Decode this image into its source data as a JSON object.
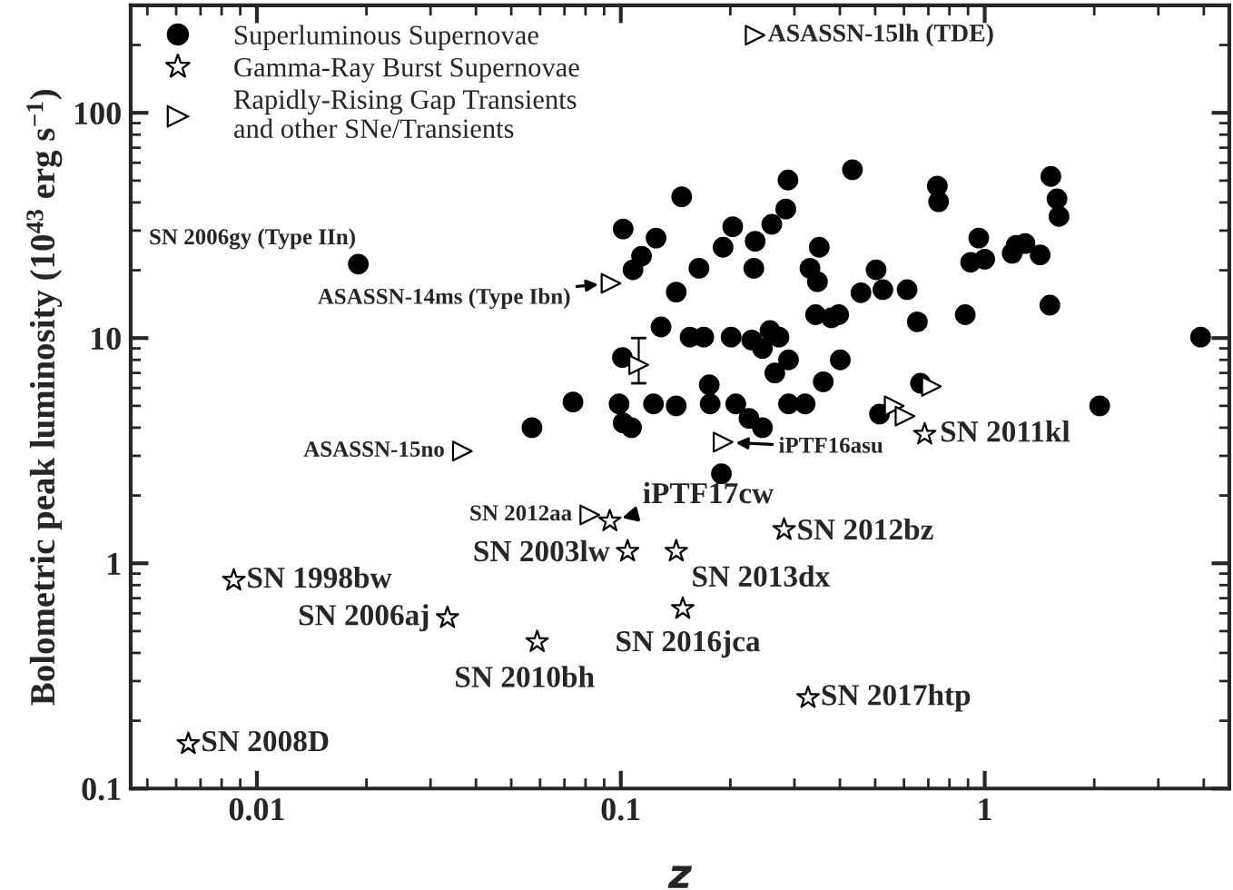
{
  "chart_data": {
    "type": "scatter",
    "xlabel": "z",
    "ylabel": "Bolometric peak luminosity (10$^{43}$ erg s$^{−1}$)",
    "log": "xy",
    "xlim": [
      0.0045,
      4.7
    ],
    "ylim": [
      0.1,
      300
    ],
    "xticks": [
      0.01,
      0.1,
      1
    ],
    "yticks": [
      0.1,
      1,
      10,
      100
    ],
    "grid": false,
    "legend": "top left",
    "series": [
      {
        "name": "Superluminous Supernovae",
        "color": "#000000",
        "marker": "circle",
        "x": [
          0.1015,
          0.108,
          0.114,
          0.125,
          0.147,
          0.142,
          0.129,
          0.155,
          0.169,
          0.164,
          0.191,
          0.203,
          0.201,
          0.232,
          0.234,
          0.26,
          0.284,
          0.288,
          0.229,
          0.245,
          0.257,
          0.272,
          0.265,
          0.289,
          0.175,
          0.36,
          0.401,
          0.331,
          0.347,
          0.351,
          0.343,
          0.379,
          0.397,
          0.433,
          0.457,
          0.503,
          0.525,
          0.612,
          0.653,
          0.741,
          0.747,
          0.884,
          0.915,
          0.963,
          1.0,
          1.19,
          1.22,
          1.29,
          1.42,
          1.51,
          1.52,
          1.58,
          1.6,
          3.92,
          2.07,
          0.666,
          0.514,
          0.0989,
          0.1015,
          0.107,
          0.123,
          0.142,
          0.176,
          0.207,
          0.225,
          0.245,
          0.289,
          0.321,
          0.101,
          0.019,
          0.057,
          0.0739,
          0.189
        ],
        "values": [
          30.5,
          20.1,
          23.1,
          27.8,
          42.4,
          16.0,
          11.2,
          10.1,
          10.1,
          20.4,
          25.3,
          31.2,
          10.1,
          20.4,
          26.9,
          32.0,
          37.4,
          50.3,
          9.8,
          9.0,
          10.8,
          10.1,
          7.0,
          8.0,
          6.2,
          6.4,
          8.0,
          20.4,
          17.8,
          25.3,
          12.7,
          12.3,
          12.7,
          55.9,
          15.9,
          20.1,
          16.4,
          16.4,
          11.8,
          47.3,
          40.3,
          12.7,
          21.7,
          27.8,
          22.4,
          23.8,
          25.8,
          26.3,
          23.4,
          14.0,
          52.2,
          41.5,
          34.7,
          10.1,
          5.0,
          6.3,
          4.6,
          5.1,
          4.2,
          4.0,
          5.1,
          5.0,
          5.1,
          5.1,
          4.4,
          4.0,
          5.1,
          5.1,
          8.2,
          21.3,
          4.0,
          5.2,
          2.5
        ]
      },
      {
        "name": "Gamma-Ray Burst Supernovae",
        "color": "#000000",
        "marker": "star",
        "x": [
          0.00648,
          0.00864,
          0.0334,
          0.0589,
          0.0933,
          0.1044,
          0.142,
          0.148,
          0.281,
          0.327,
          0.684
        ],
        "values": [
          0.158,
          0.84,
          0.573,
          0.448,
          1.54,
          1.13,
          1.13,
          0.629,
          1.41,
          0.253,
          3.74
        ]
      },
      {
        "name": "Rapidly-Rising Gap Transients\nand other SNe/Transients",
        "color": "#000000",
        "marker": "triangle",
        "x": [
          0.234,
          0.094,
          0.0367,
          0.191,
          0.112,
          0.564,
          0.604,
          0.714,
          0.0822
        ],
        "values": [
          221,
          17.5,
          3.15,
          3.45,
          7.6,
          5.0,
          4.5,
          6.1,
          1.64
        ],
        "errors": [
          null,
          null,
          null,
          null,
          [
            6.3,
            10.0
          ],
          null,
          null,
          null,
          null
        ]
      }
    ],
    "annotations": [
      {
        "text": "ASASSN-15lh (TDE)",
        "x": 0.234,
        "y": 221
      },
      {
        "text": "SN 2006gy (Type IIn)",
        "x": 0.019,
        "y": 21.3
      },
      {
        "text": "ASASSN-14ms (Type Ibn)",
        "x": 0.094,
        "y": 17.5
      },
      {
        "text": "ASASSN-15no",
        "x": 0.0367,
        "y": 3.15
      },
      {
        "text": "iPTF16asu",
        "x": 0.191,
        "y": 3.45
      },
      {
        "text": "SN 2011kl",
        "x": 0.684,
        "y": 3.74
      },
      {
        "text": "SN 2012aa",
        "x": 0.0822,
        "y": 1.64
      },
      {
        "text": "iPTF17cw",
        "x": 0.0933,
        "y": 1.54
      },
      {
        "text": "SN 2003lw",
        "x": 0.1044,
        "y": 1.13
      },
      {
        "text": "SN 2012bz",
        "x": 0.281,
        "y": 1.41
      },
      {
        "text": "SN 2013dx",
        "x": 0.142,
        "y": 1.13
      },
      {
        "text": "SN 2016jca",
        "x": 0.148,
        "y": 0.629
      },
      {
        "text": "SN 2017htp",
        "x": 0.327,
        "y": 0.253
      },
      {
        "text": "SN 1998bw",
        "x": 0.00864,
        "y": 0.84
      },
      {
        "text": "SN 2006aj",
        "x": 0.0334,
        "y": 0.573
      },
      {
        "text": "SN 2010bh",
        "x": 0.0589,
        "y": 0.448
      },
      {
        "text": "SN 2008D",
        "x": 0.00648,
        "y": 0.158
      }
    ]
  }
}
